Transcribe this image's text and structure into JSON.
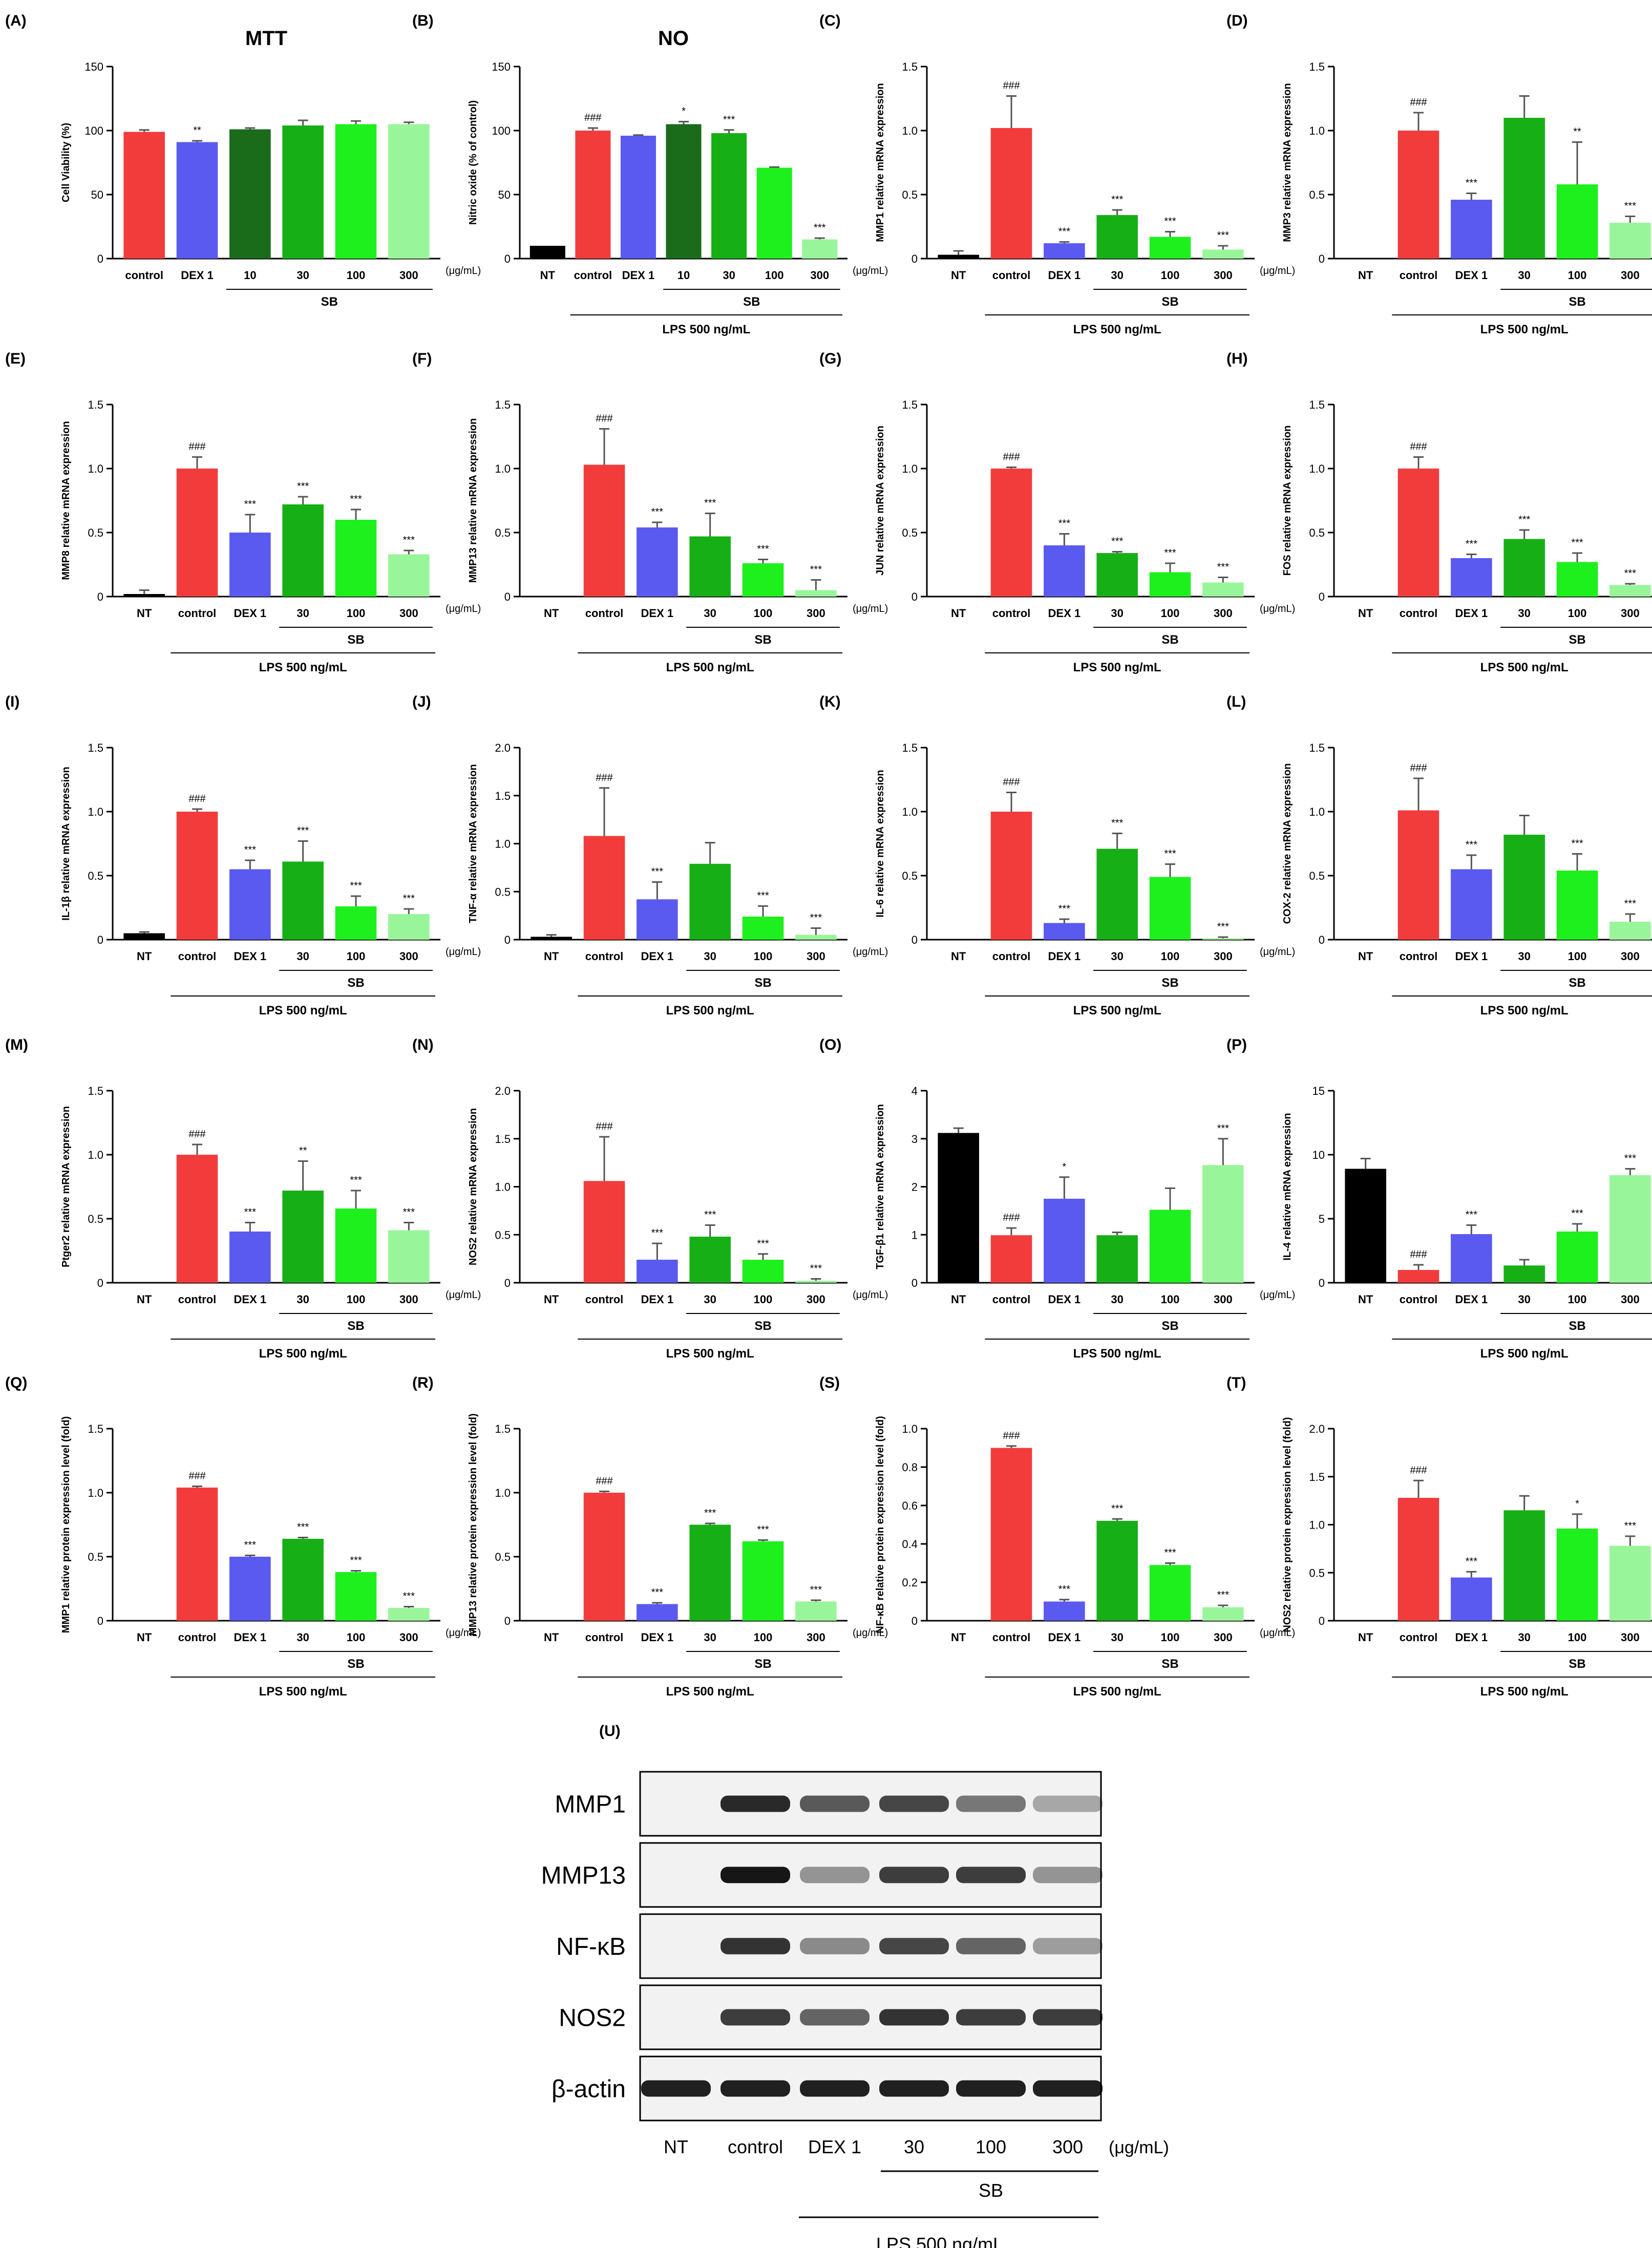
{
  "legend_text": {
    "ug": "(μg/mL)",
    "sb": "SB",
    "lps": "LPS 500 ng/mL"
  },
  "colors": {
    "NT": "#000000",
    "control": "#f23c3c",
    "DEX 1": "#5a5af0",
    "10": "#1a6b1a",
    "30": "#16b016",
    "100": "#1ef01e",
    "300": "#99f599"
  },
  "chart_data": [
    {
      "panel": "(A)",
      "type": "bar",
      "title": "MTT",
      "ylabel": "Cell Viability (%)",
      "ylim": [
        0,
        150
      ],
      "yticks": [
        0,
        50,
        100,
        150
      ],
      "categories": [
        "control",
        "DEX 1",
        "10",
        "30",
        "100",
        "300"
      ],
      "values": [
        99,
        91,
        101,
        104,
        105,
        105
      ],
      "errors": [
        1.5,
        1,
        1,
        4,
        2.5,
        1.5
      ],
      "annotations": [
        "",
        "**",
        "",
        "",
        "",
        ""
      ],
      "sb": [
        "10",
        "300"
      ],
      "lps": null
    },
    {
      "panel": "(B)",
      "type": "bar",
      "title": "NO",
      "ylabel": "Nitric oxide (% of control)",
      "ylim": [
        0,
        150
      ],
      "yticks": [
        0,
        50,
        100,
        150
      ],
      "categories": [
        "NT",
        "control",
        "DEX 1",
        "10",
        "30",
        "100",
        "300"
      ],
      "values": [
        10,
        100,
        96,
        105,
        98,
        71,
        15
      ],
      "errors": [
        0,
        2,
        0.5,
        2,
        2.5,
        0.5,
        1
      ],
      "annotations": [
        "",
        "###",
        "",
        "*",
        "***",
        "",
        "***"
      ],
      "sb": [
        "10",
        "300"
      ],
      "lps": [
        "control",
        "300"
      ]
    },
    {
      "panel": "(C)",
      "type": "bar",
      "title": "",
      "ylabel": "MMP1 relative mRNA expression",
      "ylim": [
        0,
        1.5
      ],
      "yticks": [
        0,
        0.5,
        1.0,
        1.5
      ],
      "categories": [
        "NT",
        "control",
        "DEX 1",
        "30",
        "100",
        "300"
      ],
      "values": [
        0.03,
        1.02,
        0.12,
        0.34,
        0.17,
        0.07
      ],
      "errors": [
        0.03,
        0.25,
        0.01,
        0.04,
        0.04,
        0.03
      ],
      "annotations": [
        "",
        "###",
        "***",
        "***",
        "***",
        "***"
      ],
      "sb": [
        "30",
        "300"
      ],
      "lps": [
        "control",
        "300"
      ]
    },
    {
      "panel": "(D)",
      "type": "bar",
      "title": "",
      "ylabel": "MMP3 relative mRNA expression",
      "ylim": [
        0,
        1.5
      ],
      "yticks": [
        0,
        0.5,
        1.0,
        1.5
      ],
      "categories": [
        "NT",
        "control",
        "DEX 1",
        "30",
        "100",
        "300"
      ],
      "values": [
        0,
        1.0,
        0.46,
        1.1,
        0.58,
        0.28
      ],
      "errors": [
        0,
        0.14,
        0.05,
        0.17,
        0.33,
        0.05
      ],
      "annotations": [
        "",
        "###",
        "***",
        "",
        "**",
        "***"
      ],
      "sb": [
        "30",
        "300"
      ],
      "lps": [
        "control",
        "300"
      ]
    },
    {
      "panel": "(E)",
      "type": "bar",
      "title": "",
      "ylabel": "MMP8 relative mRNA expression",
      "ylim": [
        0,
        1.5
      ],
      "yticks": [
        0,
        0.5,
        1.0,
        1.5
      ],
      "categories": [
        "NT",
        "control",
        "DEX 1",
        "30",
        "100",
        "300"
      ],
      "values": [
        0.02,
        1.0,
        0.5,
        0.72,
        0.6,
        0.33
      ],
      "errors": [
        0.03,
        0.09,
        0.14,
        0.06,
        0.08,
        0.03
      ],
      "annotations": [
        "",
        "###",
        "***",
        "***",
        "***",
        "***"
      ],
      "sb": [
        "30",
        "300"
      ],
      "lps": [
        "control",
        "300"
      ]
    },
    {
      "panel": "(F)",
      "type": "bar",
      "title": "",
      "ylabel": "MMP13 relative mRNA expression",
      "ylim": [
        0,
        1.5
      ],
      "yticks": [
        0,
        0.5,
        1.0,
        1.5
      ],
      "categories": [
        "NT",
        "control",
        "DEX 1",
        "30",
        "100",
        "300"
      ],
      "values": [
        0,
        1.03,
        0.54,
        0.47,
        0.26,
        0.05
      ],
      "errors": [
        0,
        0.28,
        0.04,
        0.18,
        0.03,
        0.08
      ],
      "annotations": [
        "",
        "###",
        "***",
        "***",
        "***",
        "***"
      ],
      "sb": [
        "30",
        "300"
      ],
      "lps": [
        "control",
        "300"
      ]
    },
    {
      "panel": "(G)",
      "type": "bar",
      "title": "",
      "ylabel": "JUN relative mRNA expression",
      "ylim": [
        0,
        1.5
      ],
      "yticks": [
        0,
        0.5,
        1.0,
        1.5
      ],
      "categories": [
        "NT",
        "control",
        "DEX 1",
        "30",
        "100",
        "300"
      ],
      "values": [
        0,
        1.0,
        0.4,
        0.34,
        0.19,
        0.11
      ],
      "errors": [
        0,
        0.01,
        0.09,
        0.01,
        0.07,
        0.04
      ],
      "annotations": [
        "",
        "###",
        "***",
        "***",
        "***",
        "***"
      ],
      "sb": [
        "30",
        "300"
      ],
      "lps": [
        "control",
        "300"
      ]
    },
    {
      "panel": "(H)",
      "type": "bar",
      "title": "",
      "ylabel": "FOS relative mRNA expression",
      "ylim": [
        0,
        1.5
      ],
      "yticks": [
        0,
        0.5,
        1.0,
        1.5
      ],
      "categories": [
        "NT",
        "control",
        "DEX 1",
        "30",
        "100",
        "300"
      ],
      "values": [
        0,
        1.0,
        0.3,
        0.45,
        0.27,
        0.09
      ],
      "errors": [
        0,
        0.09,
        0.03,
        0.07,
        0.07,
        0.01
      ],
      "annotations": [
        "",
        "###",
        "***",
        "***",
        "***",
        "***"
      ],
      "sb": [
        "30",
        "300"
      ],
      "lps": [
        "control",
        "300"
      ]
    },
    {
      "panel": "(I)",
      "type": "bar",
      "title": "",
      "ylabel": "IL-1β relative mRNA expression",
      "ylim": [
        0,
        1.5
      ],
      "yticks": [
        0,
        0.5,
        1.0,
        1.5
      ],
      "categories": [
        "NT",
        "control",
        "DEX 1",
        "30",
        "100",
        "300"
      ],
      "values": [
        0.05,
        1.0,
        0.55,
        0.61,
        0.26,
        0.2
      ],
      "errors": [
        0.01,
        0.02,
        0.07,
        0.16,
        0.08,
        0.04
      ],
      "annotations": [
        "",
        "###",
        "***",
        "***",
        "***",
        "***"
      ],
      "sb": [
        "30",
        "300"
      ],
      "lps": [
        "control",
        "300"
      ]
    },
    {
      "panel": "(J)",
      "type": "bar",
      "title": "",
      "ylabel": "TNF-α relative mRNA expression",
      "ylim": [
        0,
        2.0
      ],
      "yticks": [
        0,
        0.5,
        1.0,
        1.5,
        2.0
      ],
      "categories": [
        "NT",
        "control",
        "DEX 1",
        "30",
        "100",
        "300"
      ],
      "values": [
        0.03,
        1.08,
        0.42,
        0.79,
        0.24,
        0.05
      ],
      "errors": [
        0.02,
        0.5,
        0.18,
        0.22,
        0.11,
        0.07
      ],
      "annotations": [
        "",
        "###",
        "***",
        "",
        "***",
        "***"
      ],
      "sb": [
        "30",
        "300"
      ],
      "lps": [
        "control",
        "300"
      ]
    },
    {
      "panel": "(K)",
      "type": "bar",
      "title": "",
      "ylabel": "IL-6 relative mRNA expression",
      "ylim": [
        0,
        1.5
      ],
      "yticks": [
        0,
        0.5,
        1.0,
        1.5
      ],
      "categories": [
        "NT",
        "control",
        "DEX 1",
        "30",
        "100",
        "300"
      ],
      "values": [
        0,
        1.0,
        0.13,
        0.71,
        0.49,
        0.01
      ],
      "errors": [
        0,
        0.15,
        0.03,
        0.12,
        0.1,
        0.01
      ],
      "annotations": [
        "",
        "###",
        "***",
        "***",
        "***",
        "***"
      ],
      "sb": [
        "30",
        "300"
      ],
      "lps": [
        "control",
        "300"
      ]
    },
    {
      "panel": "(L)",
      "type": "bar",
      "title": "",
      "ylabel": "COX-2 relative mRNA expression",
      "ylim": [
        0,
        1.5
      ],
      "yticks": [
        0,
        0.5,
        1.0,
        1.5
      ],
      "categories": [
        "NT",
        "control",
        "DEX 1",
        "30",
        "100",
        "300"
      ],
      "values": [
        0,
        1.01,
        0.55,
        0.82,
        0.54,
        0.14
      ],
      "errors": [
        0,
        0.25,
        0.11,
        0.15,
        0.13,
        0.06
      ],
      "annotations": [
        "",
        "###",
        "***",
        "",
        "***",
        "***"
      ],
      "sb": [
        "30",
        "300"
      ],
      "lps": [
        "control",
        "300"
      ]
    },
    {
      "panel": "(M)",
      "type": "bar",
      "title": "",
      "ylabel": "Ptger2 relative mRNA expression",
      "ylim": [
        0,
        1.5
      ],
      "yticks": [
        0,
        0.5,
        1.0,
        1.5
      ],
      "categories": [
        "NT",
        "control",
        "DEX 1",
        "30",
        "100",
        "300"
      ],
      "values": [
        0,
        1.0,
        0.4,
        0.72,
        0.58,
        0.41
      ],
      "errors": [
        0,
        0.08,
        0.07,
        0.23,
        0.14,
        0.06
      ],
      "annotations": [
        "",
        "###",
        "***",
        "**",
        "***",
        "***"
      ],
      "sb": [
        "30",
        "300"
      ],
      "lps": [
        "control",
        "300"
      ]
    },
    {
      "panel": "(N)",
      "type": "bar",
      "title": "",
      "ylabel": "NOS2 relative mRNA expression",
      "ylim": [
        0,
        2.0
      ],
      "yticks": [
        0,
        0.5,
        1.0,
        1.5,
        2.0
      ],
      "categories": [
        "NT",
        "control",
        "DEX 1",
        "30",
        "100",
        "300"
      ],
      "values": [
        0,
        1.06,
        0.24,
        0.48,
        0.24,
        0.02
      ],
      "errors": [
        0,
        0.46,
        0.17,
        0.12,
        0.06,
        0.02
      ],
      "annotations": [
        "",
        "###",
        "***",
        "***",
        "***",
        "***"
      ],
      "sb": [
        "30",
        "300"
      ],
      "lps": [
        "control",
        "300"
      ]
    },
    {
      "panel": "(O)",
      "type": "bar",
      "title": "",
      "ylabel": "TGF-β1 relative mRNA expression",
      "ylim": [
        0,
        4
      ],
      "yticks": [
        0,
        1,
        2,
        3,
        4
      ],
      "categories": [
        "NT",
        "control",
        "DEX 1",
        "30",
        "100",
        "300"
      ],
      "values": [
        3.12,
        0.99,
        1.75,
        0.99,
        1.52,
        2.45
      ],
      "errors": [
        0.1,
        0.15,
        0.45,
        0.06,
        0.45,
        0.55
      ],
      "annotations": [
        "",
        "###",
        "*",
        "",
        "",
        "***"
      ],
      "sb": [
        "30",
        "300"
      ],
      "lps": [
        "control",
        "300"
      ]
    },
    {
      "panel": "(P)",
      "type": "bar",
      "title": "",
      "ylabel": "IL-4 relative mRNA expression",
      "ylim": [
        0,
        15
      ],
      "yticks": [
        0,
        5,
        10,
        15
      ],
      "categories": [
        "NT",
        "control",
        "DEX 1",
        "30",
        "100",
        "300"
      ],
      "values": [
        8.9,
        1.0,
        3.8,
        1.35,
        4.0,
        8.4
      ],
      "errors": [
        0.8,
        0.4,
        0.7,
        0.45,
        0.6,
        0.5
      ],
      "annotations": [
        "",
        "###",
        "***",
        "",
        "***",
        "***"
      ],
      "sb": [
        "30",
        "300"
      ],
      "lps": [
        "control",
        "300"
      ]
    },
    {
      "panel": "(Q)",
      "type": "bar",
      "title": "",
      "ylabel": "MMP1 relative protein expression level (fold)",
      "ylim": [
        0,
        1.5
      ],
      "yticks": [
        0,
        0.5,
        1.0,
        1.5
      ],
      "categories": [
        "NT",
        "control",
        "DEX 1",
        "30",
        "100",
        "300"
      ],
      "values": [
        0,
        1.04,
        0.5,
        0.64,
        0.38,
        0.1
      ],
      "errors": [
        0,
        0.01,
        0.01,
        0.01,
        0.01,
        0.01
      ],
      "annotations": [
        "",
        "###",
        "***",
        "***",
        "***",
        "***"
      ],
      "sb": [
        "30",
        "300"
      ],
      "lps": [
        "control",
        "300"
      ]
    },
    {
      "panel": "(R)",
      "type": "bar",
      "title": "",
      "ylabel": "MMP13 relative protein expression level (fold)",
      "ylim": [
        0,
        1.5
      ],
      "yticks": [
        0,
        0.5,
        1.0,
        1.5
      ],
      "categories": [
        "NT",
        "control",
        "DEX 1",
        "30",
        "100",
        "300"
      ],
      "values": [
        0,
        1.0,
        0.13,
        0.75,
        0.62,
        0.15
      ],
      "errors": [
        0,
        0.01,
        0.01,
        0.01,
        0.01,
        0.01
      ],
      "annotations": [
        "",
        "###",
        "***",
        "***",
        "***",
        "***"
      ],
      "sb": [
        "30",
        "300"
      ],
      "lps": [
        "control",
        "300"
      ]
    },
    {
      "panel": "(S)",
      "type": "bar",
      "title": "",
      "ylabel": "NF-κB relative protein expression level (fold)",
      "ylim": [
        0,
        1.0
      ],
      "yticks": [
        0,
        0.2,
        0.4,
        0.6,
        0.8,
        1.0
      ],
      "categories": [
        "NT",
        "control",
        "DEX 1",
        "30",
        "100",
        "300"
      ],
      "values": [
        0,
        0.9,
        0.1,
        0.52,
        0.29,
        0.07
      ],
      "errors": [
        0,
        0.01,
        0.01,
        0.01,
        0.01,
        0.01
      ],
      "annotations": [
        "",
        "###",
        "***",
        "***",
        "***",
        "***"
      ],
      "sb": [
        "30",
        "300"
      ],
      "lps": [
        "control",
        "300"
      ]
    },
    {
      "panel": "(T)",
      "type": "bar",
      "title": "",
      "ylabel": "NOS2 relative protein expression level (fold)",
      "ylim": [
        0,
        2.0
      ],
      "yticks": [
        0,
        0.5,
        1.0,
        1.5,
        2.0
      ],
      "categories": [
        "NT",
        "control",
        "DEX 1",
        "30",
        "100",
        "300"
      ],
      "values": [
        0,
        1.28,
        0.45,
        1.15,
        0.96,
        0.78
      ],
      "errors": [
        0,
        0.18,
        0.06,
        0.15,
        0.15,
        0.1
      ],
      "annotations": [
        "",
        "###",
        "***",
        "",
        "*",
        "***"
      ],
      "sb": [
        "30",
        "300"
      ],
      "lps": [
        "control",
        "300"
      ]
    }
  ],
  "western_blot": {
    "panel": "(U)",
    "lanes": [
      "NT",
      "control",
      "DEX 1",
      "30",
      "100",
      "300"
    ],
    "unit": "(μg/mL)",
    "sb_label": "SB",
    "lps_label": "LPS 500 ng/mL",
    "rows": [
      {
        "label": "MMP1",
        "intensities": [
          0,
          0.85,
          0.6,
          0.7,
          0.45,
          0.2
        ]
      },
      {
        "label": "MMP13",
        "intensities": [
          0,
          0.95,
          0.3,
          0.75,
          0.75,
          0.3
        ]
      },
      {
        "label": "NF-κB",
        "intensities": [
          0,
          0.8,
          0.35,
          0.7,
          0.55,
          0.25
        ]
      },
      {
        "label": "NOS2",
        "intensities": [
          0,
          0.75,
          0.55,
          0.8,
          0.75,
          0.75
        ]
      },
      {
        "label": "β-actin",
        "intensities": [
          0.9,
          0.9,
          0.9,
          0.9,
          0.9,
          0.9
        ]
      }
    ]
  }
}
